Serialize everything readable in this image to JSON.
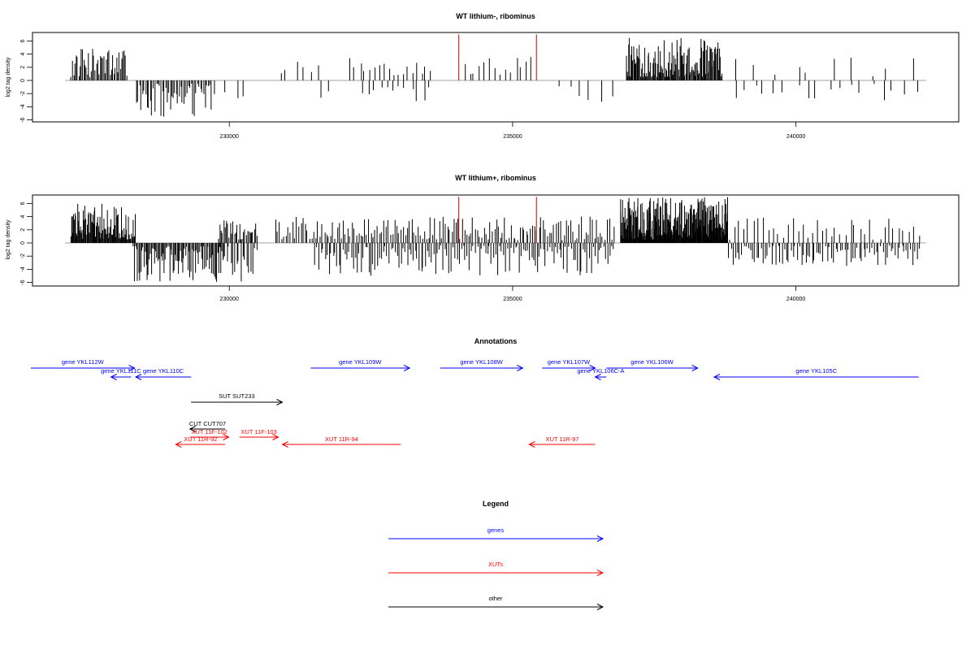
{
  "chart_data": [
    {
      "type": "bar",
      "title": "WT lithium-, ribominus",
      "ylabel": "log2 tag density",
      "xlim": [
        227100,
        242300
      ],
      "ylim": [
        -6,
        7
      ],
      "yticks": [
        6,
        4,
        2,
        0,
        -2,
        -4,
        -6
      ],
      "xticks": [
        230000,
        235000,
        240000
      ],
      "xtick_labels": [
        "230000",
        "235000",
        "240000"
      ],
      "grid": false,
      "highlight_color": "#cc0000",
      "highlight_bars": [
        {
          "x": 234050,
          "value": 7.0
        },
        {
          "x": 235420,
          "value": 7.0
        }
      ],
      "clusters": [
        {
          "from": 227200,
          "to": 228200,
          "sign": 1,
          "count": 45,
          "max": 5.0,
          "min": 0.5
        },
        {
          "from": 228350,
          "to": 229700,
          "sign": -1,
          "count": 50,
          "max": 6.0,
          "min": 0.5
        },
        {
          "from": 229700,
          "to": 230400,
          "sign": -1,
          "count": 4,
          "max": 3.5,
          "min": 1.0
        },
        {
          "from": 230800,
          "to": 231700,
          "sign": 1,
          "count": 6,
          "max": 3.0,
          "min": 1.0
        },
        {
          "from": 231500,
          "to": 231900,
          "sign": -1,
          "count": 2,
          "max": 3.0,
          "min": 1.0
        },
        {
          "from": 232100,
          "to": 233600,
          "sign": 1,
          "count": 18,
          "max": 3.5,
          "min": 0.8
        },
        {
          "from": 232300,
          "to": 233600,
          "sign": -1,
          "count": 12,
          "max": 3.5,
          "min": 0.8
        },
        {
          "from": 234100,
          "to": 235400,
          "sign": 1,
          "count": 14,
          "max": 4.0,
          "min": 0.8
        },
        {
          "from": 235700,
          "to": 236900,
          "sign": -1,
          "count": 6,
          "max": 4.0,
          "min": 0.8
        },
        {
          "from": 237000,
          "to": 238700,
          "sign": 1,
          "count": 120,
          "max": 6.5,
          "min": 0.5
        },
        {
          "from": 238800,
          "to": 242200,
          "sign": 1,
          "count": 10,
          "max": 3.5,
          "min": 0.5
        },
        {
          "from": 238800,
          "to": 242200,
          "sign": -1,
          "count": 18,
          "max": 3.2,
          "min": 0.5
        }
      ]
    },
    {
      "type": "bar",
      "title": "WT lithium+, ribominus",
      "ylabel": "log2 tag density",
      "xlim": [
        227100,
        242300
      ],
      "ylim": [
        -6,
        7
      ],
      "yticks": [
        6,
        4,
        2,
        0,
        -2,
        -4,
        -6
      ],
      "xticks": [
        230000,
        235000,
        240000
      ],
      "xtick_labels": [
        "230000",
        "235000",
        "240000"
      ],
      "grid": false,
      "highlight_color": "#cc0000",
      "highlight_bars": [
        {
          "x": 234050,
          "value": 7.0
        },
        {
          "x": 235420,
          "value": 7.0
        }
      ],
      "clusters": [
        {
          "from": 227200,
          "to": 228350,
          "sign": 1,
          "count": 95,
          "max": 6.0,
          "min": 0.5
        },
        {
          "from": 228300,
          "to": 229900,
          "sign": -1,
          "count": 85,
          "max": 6.0,
          "min": 0.5
        },
        {
          "from": 229800,
          "to": 230500,
          "sign": 1,
          "count": 30,
          "max": 3.5,
          "min": 0.5
        },
        {
          "from": 229800,
          "to": 230500,
          "sign": -1,
          "count": 20,
          "max": 6.0,
          "min": 0.5
        },
        {
          "from": 230800,
          "to": 236800,
          "sign": 1,
          "count": 160,
          "max": 4.0,
          "min": 0.4
        },
        {
          "from": 231500,
          "to": 236800,
          "sign": -1,
          "count": 150,
          "max": 5.0,
          "min": 0.4
        },
        {
          "from": 236900,
          "to": 238800,
          "sign": 1,
          "count": 240,
          "max": 7.0,
          "min": 0.5
        },
        {
          "from": 238800,
          "to": 242200,
          "sign": 1,
          "count": 40,
          "max": 4.0,
          "min": 0.4
        },
        {
          "from": 238800,
          "to": 242200,
          "sign": -1,
          "count": 90,
          "max": 3.5,
          "min": 0.4
        }
      ]
    }
  ],
  "annotations": {
    "title": "Annotations",
    "xlim": [
      227100,
      242300
    ],
    "colors": {
      "gene": "#0000ff",
      "xut": "#ff0000",
      "other": "#000000"
    },
    "features": [
      {
        "label": "gene YKL112W",
        "kind": "gene",
        "start": 227100,
        "end": 228860,
        "dir": "right",
        "row": 0
      },
      {
        "label": "gene YKL111C",
        "kind": "gene",
        "start": 228460,
        "end": 228800,
        "dir": "left",
        "row": 1
      },
      {
        "label": "gene YKL110C",
        "kind": "gene",
        "start": 228880,
        "end": 229820,
        "dir": "left",
        "row": 1
      },
      {
        "label": "gene YKL109W",
        "kind": "gene",
        "start": 231850,
        "end": 233530,
        "dir": "right",
        "row": 0
      },
      {
        "label": "gene YKL108W",
        "kind": "gene",
        "start": 234050,
        "end": 235450,
        "dir": "right",
        "row": 0
      },
      {
        "label": "gene YKL107W",
        "kind": "gene",
        "start": 235780,
        "end": 236680,
        "dir": "right",
        "row": 0
      },
      {
        "label": "gene YKL106C-A",
        "kind": "gene",
        "start": 236680,
        "end": 236870,
        "dir": "left",
        "row": 1
      },
      {
        "label": "gene YKL106W",
        "kind": "gene",
        "start": 236870,
        "end": 238420,
        "dir": "right",
        "row": 0
      },
      {
        "label": "gene YKL105C",
        "kind": "gene",
        "start": 238700,
        "end": 242170,
        "dir": "left",
        "row": 1
      },
      {
        "label": "SUT SUT233",
        "kind": "other",
        "start": 229820,
        "end": 231370,
        "dir": "right",
        "row": 2
      },
      {
        "label": "CUT CUT707",
        "kind": "other",
        "start": 229800,
        "end": 230400,
        "dir": "left",
        "row": 3
      },
      {
        "label": "XUT 11F-102",
        "kind": "xut",
        "start": 229800,
        "end": 230460,
        "dir": "right",
        "row": 4
      },
      {
        "label": "XUT 11F-103",
        "kind": "xut",
        "start": 230640,
        "end": 231300,
        "dir": "right",
        "row": 4
      },
      {
        "label": "XUT 11R-92",
        "kind": "xut",
        "start": 229560,
        "end": 230400,
        "dir": "left",
        "row": 5
      },
      {
        "label": "XUT 11R-94",
        "kind": "xut",
        "start": 231370,
        "end": 233380,
        "dir": "left",
        "row": 5
      },
      {
        "label": "XUT 11R-97",
        "kind": "xut",
        "start": 235560,
        "end": 236680,
        "dir": "left",
        "row": 5
      }
    ]
  },
  "legend": {
    "title": "Legend",
    "items": [
      {
        "label": "genes",
        "kind": "gene"
      },
      {
        "label": "XUTs",
        "kind": "xut"
      },
      {
        "label": "other",
        "kind": "other"
      }
    ]
  }
}
